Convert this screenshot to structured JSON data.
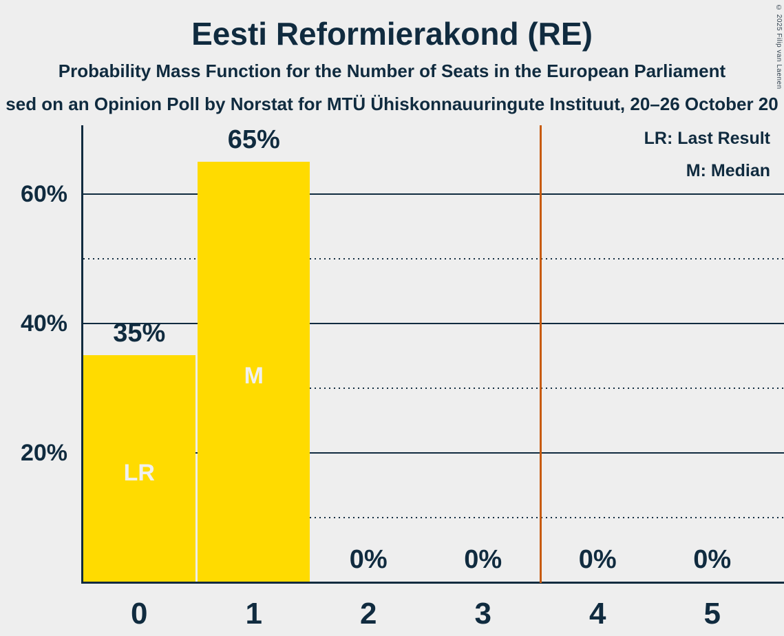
{
  "header": {
    "title": "Eesti Reformierakond (RE)",
    "subtitle": "Probability Mass Function for the Number of Seats in the European Parliament",
    "subtitle2": "sed on an Opinion Poll by Norstat for MTÜ Ühiskonnauuringute Instituut, 20–26 October 20",
    "copyright": "© 2025 Filip van Laenen"
  },
  "legend": {
    "last_result_label": "LR: Last Result",
    "median_label": "M: Median"
  },
  "colors": {
    "background": "#EEEEEE",
    "text": "#102B3F",
    "bar": "#FFDB00",
    "bar_letter": "#F0F0F0",
    "threshold_line": "#C75B0C"
  },
  "chart_data": {
    "type": "bar",
    "title": "Eesti Reformierakond (RE)",
    "categories": [
      "0",
      "1",
      "2",
      "3",
      "4",
      "5"
    ],
    "values": [
      35,
      65,
      0,
      0,
      0,
      0
    ],
    "value_labels": [
      "35%",
      "65%",
      "0%",
      "0%",
      "0%",
      "0%"
    ],
    "bar_annotations": [
      {
        "category_index": 0,
        "label": "LR",
        "meaning": "Last Result"
      },
      {
        "category_index": 1,
        "label": "M",
        "meaning": "Median"
      }
    ],
    "xlabel": "",
    "ylabel": "",
    "y_tick_labels": [
      "20%",
      "40%",
      "60%"
    ],
    "y_ticks_solid_grid": [
      20,
      40,
      60
    ],
    "y_ticks_dotted_grid": [
      10,
      30,
      50
    ],
    "ylim": [
      0,
      70.5
    ],
    "vertical_line_x": 3.5,
    "legend_position": "top-right",
    "grid": "horizontal-only"
  }
}
